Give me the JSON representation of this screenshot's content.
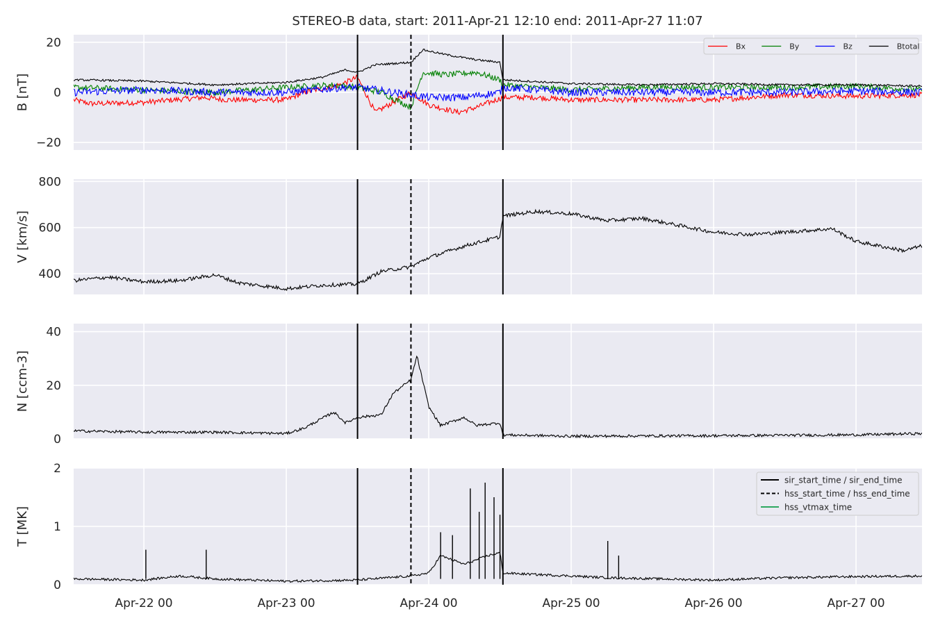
{
  "figure": {
    "title": "STEREO-B data, start: 2011-Apr-21 12:10  end: 2011-Apr-27 11:07",
    "background": "#ffffff",
    "panel_bg": "#eaeaf2",
    "grid_color": "#ffffff"
  },
  "chart_data": {
    "type": "line",
    "x_unit": "hours since 2011-Apr-21 12:10",
    "x_range": [
      "2011-04-21T12:10",
      "2011-04-27T11:07"
    ],
    "x_ticks": [
      {
        "time": "2011-04-22T00:00",
        "label": "Apr-22 00"
      },
      {
        "time": "2011-04-23T00:00",
        "label": "Apr-23 00"
      },
      {
        "time": "2011-04-24T00:00",
        "label": "Apr-24 00"
      },
      {
        "time": "2011-04-25T00:00",
        "label": "Apr-25 00"
      },
      {
        "time": "2011-04-26T00:00",
        "label": "Apr-26 00"
      },
      {
        "time": "2011-04-27T00:00",
        "label": "Apr-27 00"
      }
    ],
    "event_lines": [
      {
        "time": "2011-04-23T12:00",
        "style": "solid",
        "name": "sir_start_time"
      },
      {
        "time": "2011-04-23T21:00",
        "style": "dashed",
        "name": "hss_start_time"
      },
      {
        "time": "2011-04-24T12:30",
        "style": "solid",
        "name": "sir_end_time"
      }
    ],
    "panels": [
      {
        "id": "B",
        "ylabel": "B [nT]",
        "ylim": [
          -23,
          23
        ],
        "yticks": [
          {
            "v": -20,
            "label": "−20"
          },
          {
            "v": 0,
            "label": "0"
          },
          {
            "v": 20,
            "label": "20"
          }
        ],
        "legend": {
          "placement": "top-right",
          "columns": 4
        },
        "series": [
          {
            "name": "Bx",
            "color": "#ff0000",
            "noise": 1.1,
            "points": [
              [
                "2011-04-21T12:10",
                -3
              ],
              [
                "2011-04-21T15:00",
                -4.5
              ],
              [
                "2011-04-22T00:00",
                -4
              ],
              [
                "2011-04-22T10:00",
                -2
              ],
              [
                "2011-04-22T14:00",
                -3
              ],
              [
                "2011-04-23T00:00",
                -3
              ],
              [
                "2011-04-23T03:00",
                0
              ],
              [
                "2011-04-23T09:00",
                3
              ],
              [
                "2011-04-23T12:00",
                6
              ],
              [
                "2011-04-23T15:00",
                -8
              ],
              [
                "2011-04-23T21:00",
                0
              ],
              [
                "2011-04-24T00:00",
                -5
              ],
              [
                "2011-04-24T05:00",
                -8
              ],
              [
                "2011-04-24T08:00",
                -6
              ],
              [
                "2011-04-24T12:30",
                -2
              ],
              [
                "2011-04-24T18:00",
                -2
              ],
              [
                "2011-04-25T00:00",
                -3
              ],
              [
                "2011-04-25T12:00",
                -3
              ],
              [
                "2011-04-26T00:00",
                -3
              ],
              [
                "2011-04-26T12:00",
                -1
              ],
              [
                "2011-04-27T00:00",
                -1.5
              ],
              [
                "2011-04-27T11:07",
                -1
              ]
            ]
          },
          {
            "name": "By",
            "color": "#008000",
            "noise": 1.2,
            "points": [
              [
                "2011-04-21T12:10",
                2
              ],
              [
                "2011-04-22T00:00",
                1
              ],
              [
                "2011-04-22T12:00",
                0
              ],
              [
                "2011-04-23T00:00",
                2
              ],
              [
                "2011-04-23T08:00",
                3
              ],
              [
                "2011-04-23T12:00",
                2
              ],
              [
                "2011-04-23T16:00",
                0
              ],
              [
                "2011-04-23T21:00",
                -6
              ],
              [
                "2011-04-23T23:00",
                8
              ],
              [
                "2011-04-24T03:00",
                7
              ],
              [
                "2011-04-24T08:00",
                8
              ],
              [
                "2011-04-24T12:00",
                5
              ],
              [
                "2011-04-24T12:30",
                3
              ],
              [
                "2011-04-25T00:00",
                1
              ],
              [
                "2011-04-25T12:00",
                2
              ],
              [
                "2011-04-26T00:00",
                2
              ],
              [
                "2011-04-26T12:00",
                2
              ],
              [
                "2011-04-27T00:00",
                2.5
              ],
              [
                "2011-04-27T11:07",
                1
              ]
            ]
          },
          {
            "name": "Bz",
            "color": "#0000ff",
            "noise": 1.5,
            "points": [
              [
                "2011-04-21T12:10",
                0
              ],
              [
                "2011-04-22T00:00",
                1
              ],
              [
                "2011-04-22T12:00",
                0
              ],
              [
                "2011-04-23T00:00",
                0
              ],
              [
                "2011-04-23T10:00",
                2
              ],
              [
                "2011-04-23T12:00",
                2
              ],
              [
                "2011-04-23T18:00",
                0
              ],
              [
                "2011-04-24T00:00",
                -2
              ],
              [
                "2011-04-24T06:00",
                -2
              ],
              [
                "2011-04-24T12:00",
                0
              ],
              [
                "2011-04-24T12:30",
                2
              ],
              [
                "2011-04-25T00:00",
                0
              ],
              [
                "2011-04-25T12:00",
                0
              ],
              [
                "2011-04-26T00:00",
                0
              ],
              [
                "2011-04-26T12:00",
                0
              ],
              [
                "2011-04-27T00:00",
                0.5
              ],
              [
                "2011-04-27T11:07",
                0
              ]
            ]
          },
          {
            "name": "Btotal",
            "color": "#000000",
            "noise": 0.4,
            "points": [
              [
                "2011-04-21T12:10",
                5
              ],
              [
                "2011-04-22T00:00",
                4.5
              ],
              [
                "2011-04-22T12:00",
                3
              ],
              [
                "2011-04-23T00:00",
                4
              ],
              [
                "2011-04-23T06:00",
                6
              ],
              [
                "2011-04-23T10:00",
                9
              ],
              [
                "2011-04-23T12:00",
                8
              ],
              [
                "2011-04-23T15:00",
                11
              ],
              [
                "2011-04-23T21:00",
                12
              ],
              [
                "2011-04-23T23:00",
                17
              ],
              [
                "2011-04-24T03:00",
                15
              ],
              [
                "2011-04-24T08:00",
                13
              ],
              [
                "2011-04-24T12:00",
                12
              ],
              [
                "2011-04-24T12:30",
                5
              ],
              [
                "2011-04-25T00:00",
                3.5
              ],
              [
                "2011-04-25T12:00",
                3
              ],
              [
                "2011-04-26T00:00",
                3.5
              ],
              [
                "2011-04-26T12:00",
                3
              ],
              [
                "2011-04-27T00:00",
                3
              ],
              [
                "2011-04-27T11:07",
                2.5
              ]
            ]
          }
        ]
      },
      {
        "id": "V",
        "ylabel": "V [km/s]",
        "ylim": [
          310,
          810
        ],
        "yticks": [
          {
            "v": 400,
            "label": "400"
          },
          {
            "v": 600,
            "label": "600"
          },
          {
            "v": 800,
            "label": "800"
          }
        ],
        "series": [
          {
            "name": "V",
            "color": "#000000",
            "noise": 8,
            "points": [
              [
                "2011-04-21T12:10",
                370
              ],
              [
                "2011-04-21T18:00",
                385
              ],
              [
                "2011-04-22T00:00",
                365
              ],
              [
                "2011-04-22T06:00",
                370
              ],
              [
                "2011-04-22T12:00",
                395
              ],
              [
                "2011-04-22T16:00",
                360
              ],
              [
                "2011-04-23T00:00",
                335
              ],
              [
                "2011-04-23T06:00",
                350
              ],
              [
                "2011-04-23T12:00",
                355
              ],
              [
                "2011-04-23T16:00",
                410
              ],
              [
                "2011-04-23T21:00",
                430
              ],
              [
                "2011-04-24T00:00",
                470
              ],
              [
                "2011-04-24T06:00",
                520
              ],
              [
                "2011-04-24T12:00",
                560
              ],
              [
                "2011-04-24T12:30",
                650
              ],
              [
                "2011-04-24T18:00",
                670
              ],
              [
                "2011-04-25T00:00",
                660
              ],
              [
                "2011-04-25T06:00",
                630
              ],
              [
                "2011-04-25T12:00",
                640
              ],
              [
                "2011-04-25T18:00",
                610
              ],
              [
                "2011-04-26T00:00",
                580
              ],
              [
                "2011-04-26T06:00",
                570
              ],
              [
                "2011-04-26T12:00",
                580
              ],
              [
                "2011-04-26T20:00",
                595
              ],
              [
                "2011-04-27T00:00",
                540
              ],
              [
                "2011-04-27T08:00",
                500
              ],
              [
                "2011-04-27T11:07",
                520
              ]
            ]
          }
        ]
      },
      {
        "id": "N",
        "ylabel": "N [ccm-3]",
        "ylim": [
          0,
          43
        ],
        "yticks": [
          {
            "v": 0,
            "label": "0"
          },
          {
            "v": 20,
            "label": "20"
          },
          {
            "v": 40,
            "label": "40"
          }
        ],
        "series": [
          {
            "name": "N",
            "color": "#000000",
            "noise": 0.5,
            "points": [
              [
                "2011-04-21T12:10",
                3
              ],
              [
                "2011-04-22T00:00",
                2.5
              ],
              [
                "2011-04-22T12:00",
                2.5
              ],
              [
                "2011-04-23T00:00",
                2
              ],
              [
                "2011-04-23T03:00",
                4
              ],
              [
                "2011-04-23T08:00",
                10
              ],
              [
                "2011-04-23T10:00",
                6
              ],
              [
                "2011-04-23T12:00",
                8
              ],
              [
                "2011-04-23T16:00",
                9
              ],
              [
                "2011-04-23T18:00",
                17
              ],
              [
                "2011-04-23T21:00",
                22
              ],
              [
                "2011-04-23T22:00",
                31
              ],
              [
                "2011-04-24T00:00",
                12
              ],
              [
                "2011-04-24T02:00",
                5
              ],
              [
                "2011-04-24T06:00",
                8
              ],
              [
                "2011-04-24T08:00",
                5
              ],
              [
                "2011-04-24T12:00",
                6
              ],
              [
                "2011-04-24T12:30",
                1.5
              ],
              [
                "2011-04-25T00:00",
                1
              ],
              [
                "2011-04-26T00:00",
                1.2
              ],
              [
                "2011-04-27T00:00",
                1.5
              ],
              [
                "2011-04-27T11:07",
                2
              ]
            ]
          }
        ]
      },
      {
        "id": "T",
        "ylabel": "T [MK]",
        "ylim": [
          0,
          2
        ],
        "yticks": [
          {
            "v": 0,
            "label": "0"
          },
          {
            "v": 1,
            "label": "1"
          },
          {
            "v": 2,
            "label": "2"
          }
        ],
        "legend": {
          "placement": "top-right",
          "entries": [
            {
              "label": "sir_start_time / sir_end_time",
              "color": "#000000",
              "style": "solid"
            },
            {
              "label": "hss_start_time / hss_end_time",
              "color": "#000000",
              "style": "dashed"
            },
            {
              "label": "hss_vtmax_time",
              "color": "#2ca860",
              "style": "solid"
            }
          ]
        },
        "series": [
          {
            "name": "T",
            "color": "#000000",
            "noise": 0.02,
            "points": [
              [
                "2011-04-21T12:10",
                0.1
              ],
              [
                "2011-04-22T00:00",
                0.08
              ],
              [
                "2011-04-22T06:00",
                0.15
              ],
              [
                "2011-04-22T12:00",
                0.1
              ],
              [
                "2011-04-23T00:00",
                0.06
              ],
              [
                "2011-04-23T12:00",
                0.08
              ],
              [
                "2011-04-23T21:00",
                0.15
              ],
              [
                "2011-04-24T00:00",
                0.2
              ],
              [
                "2011-04-24T02:00",
                0.5
              ],
              [
                "2011-04-24T06:00",
                0.35
              ],
              [
                "2011-04-24T10:00",
                0.5
              ],
              [
                "2011-04-24T12:00",
                0.55
              ],
              [
                "2011-04-24T12:30",
                0.2
              ],
              [
                "2011-04-25T00:00",
                0.15
              ],
              [
                "2011-04-25T06:00",
                0.12
              ],
              [
                "2011-04-26T00:00",
                0.08
              ],
              [
                "2011-04-26T12:00",
                0.12
              ],
              [
                "2011-04-27T00:00",
                0.14
              ],
              [
                "2011-04-27T11:07",
                0.15
              ]
            ]
          }
        ],
        "spikes": [
          [
            "2011-04-22T00:20",
            0.6
          ],
          [
            "2011-04-22T10:30",
            0.6
          ],
          [
            "2011-04-24T02:00",
            0.9
          ],
          [
            "2011-04-24T04:00",
            0.85
          ],
          [
            "2011-04-24T07:00",
            1.65
          ],
          [
            "2011-04-24T08:30",
            1.25
          ],
          [
            "2011-04-24T09:30",
            1.75
          ],
          [
            "2011-04-24T11:00",
            1.5
          ],
          [
            "2011-04-24T12:00",
            1.2
          ],
          [
            "2011-04-25T06:10",
            0.75
          ],
          [
            "2011-04-25T08:00",
            0.5
          ]
        ]
      }
    ]
  }
}
